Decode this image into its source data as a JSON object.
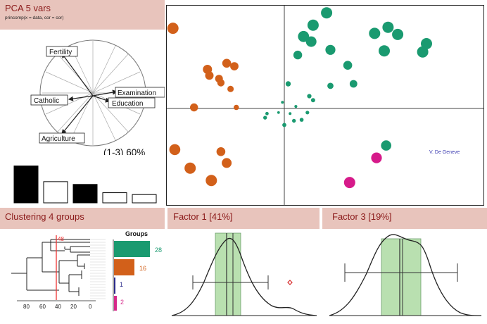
{
  "pca": {
    "title": "PCA  5 vars",
    "subtitle": "princomp(x = data, cor = cor)",
    "variables": [
      "Fertility",
      "Catholic",
      "Examination",
      "Education",
      "Agriculture"
    ],
    "axes_label": "(1-3) 60%",
    "scree": [
      2.0,
      1.15,
      1.0,
      0.55,
      0.45
    ]
  },
  "clustering": {
    "title": "Clustering  4 groups",
    "cut_label": "48",
    "axis_ticks": [
      "80",
      "60",
      "40",
      "20",
      "0"
    ],
    "groups_label": "Groups",
    "groups": [
      {
        "count": "28",
        "color": "#1a9a70"
      },
      {
        "count": "16",
        "color": "#d2601a"
      },
      {
        "count": "1",
        "color": "#2a2a8a"
      },
      {
        "count": "2",
        "color": "#d62a8a"
      }
    ]
  },
  "factor1": {
    "title": "Factor 1 [41%]"
  },
  "factor3": {
    "title": "Factor 3 [19%]"
  },
  "scatter": {
    "label": "V. De Geneve",
    "colors": {
      "green": "#1a9a70",
      "orange": "#d2601a",
      "pink": "#d61a8a"
    }
  },
  "chart_data": [
    {
      "type": "scatter",
      "title": "",
      "series": [
        {
          "color": "#1a9a70",
          "points": [
            [
              0.22,
              0.93
            ],
            [
              0.54,
              0.79
            ],
            [
              0.59,
              0.72
            ],
            [
              0.47,
              0.73
            ],
            [
              0.74,
              0.63
            ],
            [
              0.72,
              0.55
            ],
            [
              0.52,
              0.56
            ],
            [
              0.15,
              0.81
            ],
            [
              0.1,
              0.7
            ],
            [
              0.07,
              0.52
            ],
            [
              0.14,
              0.65
            ],
            [
              0.24,
              0.57
            ],
            [
              0.33,
              0.42
            ],
            [
              0.36,
              0.24
            ],
            [
              0.24,
              0.22
            ],
            [
              0.13,
              0.12
            ],
            [
              0.15,
              0.08
            ],
            [
              0.12,
              -0.04
            ],
            [
              0.05,
              -0.12
            ],
            [
              0.03,
              -0.05
            ],
            [
              0.0,
              -0.16
            ],
            [
              0.06,
              0.02
            ],
            [
              0.09,
              -0.11
            ],
            [
              -0.03,
              -0.04
            ],
            [
              -0.09,
              -0.05
            ],
            [
              -0.1,
              -0.09
            ],
            [
              0.02,
              0.24
            ],
            [
              -0.01,
              0.06
            ]
          ]
        },
        {
          "color": "#d2601a",
          "points": [
            [
              -0.58,
              0.78
            ],
            [
              -0.4,
              0.38
            ],
            [
              -0.3,
              0.44
            ],
            [
              -0.26,
              0.41
            ],
            [
              -0.39,
              0.32
            ],
            [
              -0.34,
              0.29
            ],
            [
              -0.33,
              0.25
            ],
            [
              -0.28,
              0.19
            ],
            [
              -0.69,
              0.05
            ],
            [
              -0.47,
              0.01
            ],
            [
              -0.25,
              0.01
            ],
            [
              -0.57,
              -0.4
            ],
            [
              -0.33,
              -0.42
            ],
            [
              -0.49,
              -0.58
            ],
            [
              -0.3,
              -0.53
            ],
            [
              -0.38,
              -0.7
            ]
          ]
        },
        {
          "color": "#2a2a8a",
          "points": [
            [
              0.53,
              -0.36
            ]
          ]
        },
        {
          "color": "#d61a8a",
          "points": [
            [
              0.48,
              -0.48
            ],
            [
              0.34,
              -0.72
            ]
          ]
        }
      ]
    },
    {
      "type": "area",
      "title": "Factor 1 [41%]",
      "x": [
        -4,
        -3,
        -2.5,
        -2,
        -1.5,
        -1,
        -0.5,
        0,
        0.5,
        1,
        1.5,
        2,
        2.5,
        3,
        3.5,
        4
      ],
      "y": [
        0.01,
        0.05,
        0.13,
        0.27,
        0.45,
        0.58,
        0.55,
        0.44,
        0.33,
        0.25,
        0.19,
        0.14,
        0.09,
        0.05,
        0.02,
        0.01
      ]
    },
    {
      "type": "area",
      "title": "Factor 3 [19%]",
      "x": [
        -4,
        -3,
        -2.5,
        -2,
        -1.5,
        -1,
        -0.5,
        0,
        0.5,
        1,
        1.5,
        2,
        2.5,
        3,
        3.5,
        4
      ],
      "y": [
        0.01,
        0.05,
        0.12,
        0.24,
        0.4,
        0.55,
        0.58,
        0.55,
        0.53,
        0.52,
        0.47,
        0.36,
        0.22,
        0.1,
        0.04,
        0.01
      ]
    }
  ]
}
